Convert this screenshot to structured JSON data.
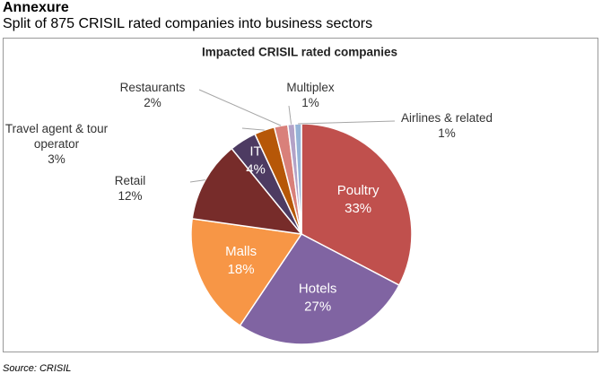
{
  "heading": "Annexure",
  "subheading": "Split of 875 CRISIL rated companies into business sectors",
  "source": "Source: CRISIL",
  "chart_data": {
    "type": "pie",
    "title": "Impacted CRISIL rated companies",
    "categories": [
      "Poultry",
      "Hotels",
      "Malls",
      "Retail",
      "IT",
      "Travel agent & tour operator",
      "Restaurants",
      "Multiplex",
      "Airlines & related"
    ],
    "values": [
      33,
      27,
      18,
      12,
      4,
      3,
      2,
      1,
      1
    ],
    "value_labels": [
      "33%",
      "27%",
      "18%",
      "12%",
      "4%",
      "3%",
      "2%",
      "1%",
      "1%"
    ],
    "colors": [
      "#c0504d",
      "#8064a2",
      "#f79646",
      "#772c2a",
      "#4d3b62",
      "#b65708",
      "#d9807a",
      "#b3a2c7",
      "#95b3d7"
    ]
  }
}
